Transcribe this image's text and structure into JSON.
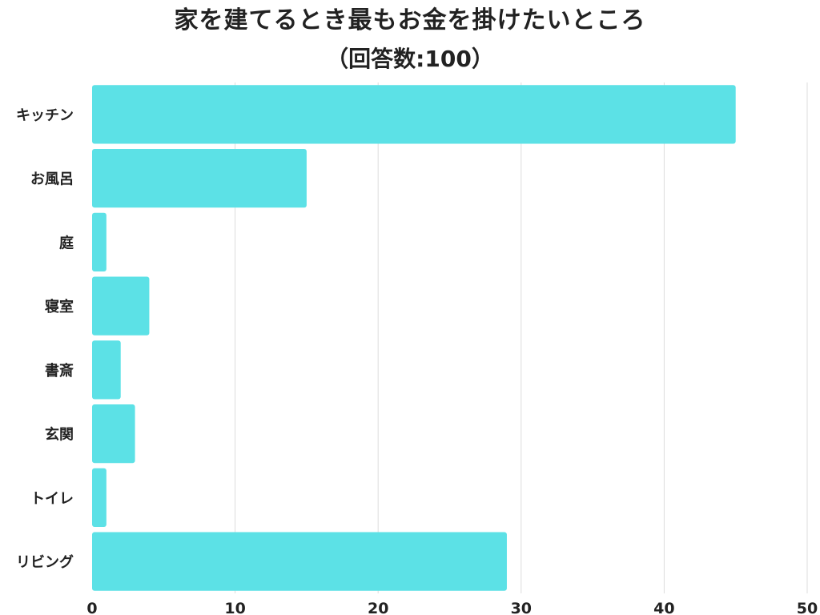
{
  "chart_data": {
    "type": "bar",
    "orientation": "horizontal",
    "title": "家を建てるとき最もお金を掛けたいところ",
    "subtitle": "（回答数:100）",
    "xlabel": "",
    "ylabel": "",
    "categories": [
      "キッチン",
      "お風呂",
      "庭",
      "寝室",
      "書斎",
      "玄関",
      "トイレ",
      "リビング"
    ],
    "values": [
      45,
      15,
      1,
      4,
      2,
      3,
      1,
      29
    ],
    "xlim": [
      0,
      50
    ],
    "xticks": [
      "0",
      "10",
      "20",
      "30",
      "40",
      "50"
    ],
    "grid": "vertical",
    "bar_color": "#5ce1e6"
  }
}
